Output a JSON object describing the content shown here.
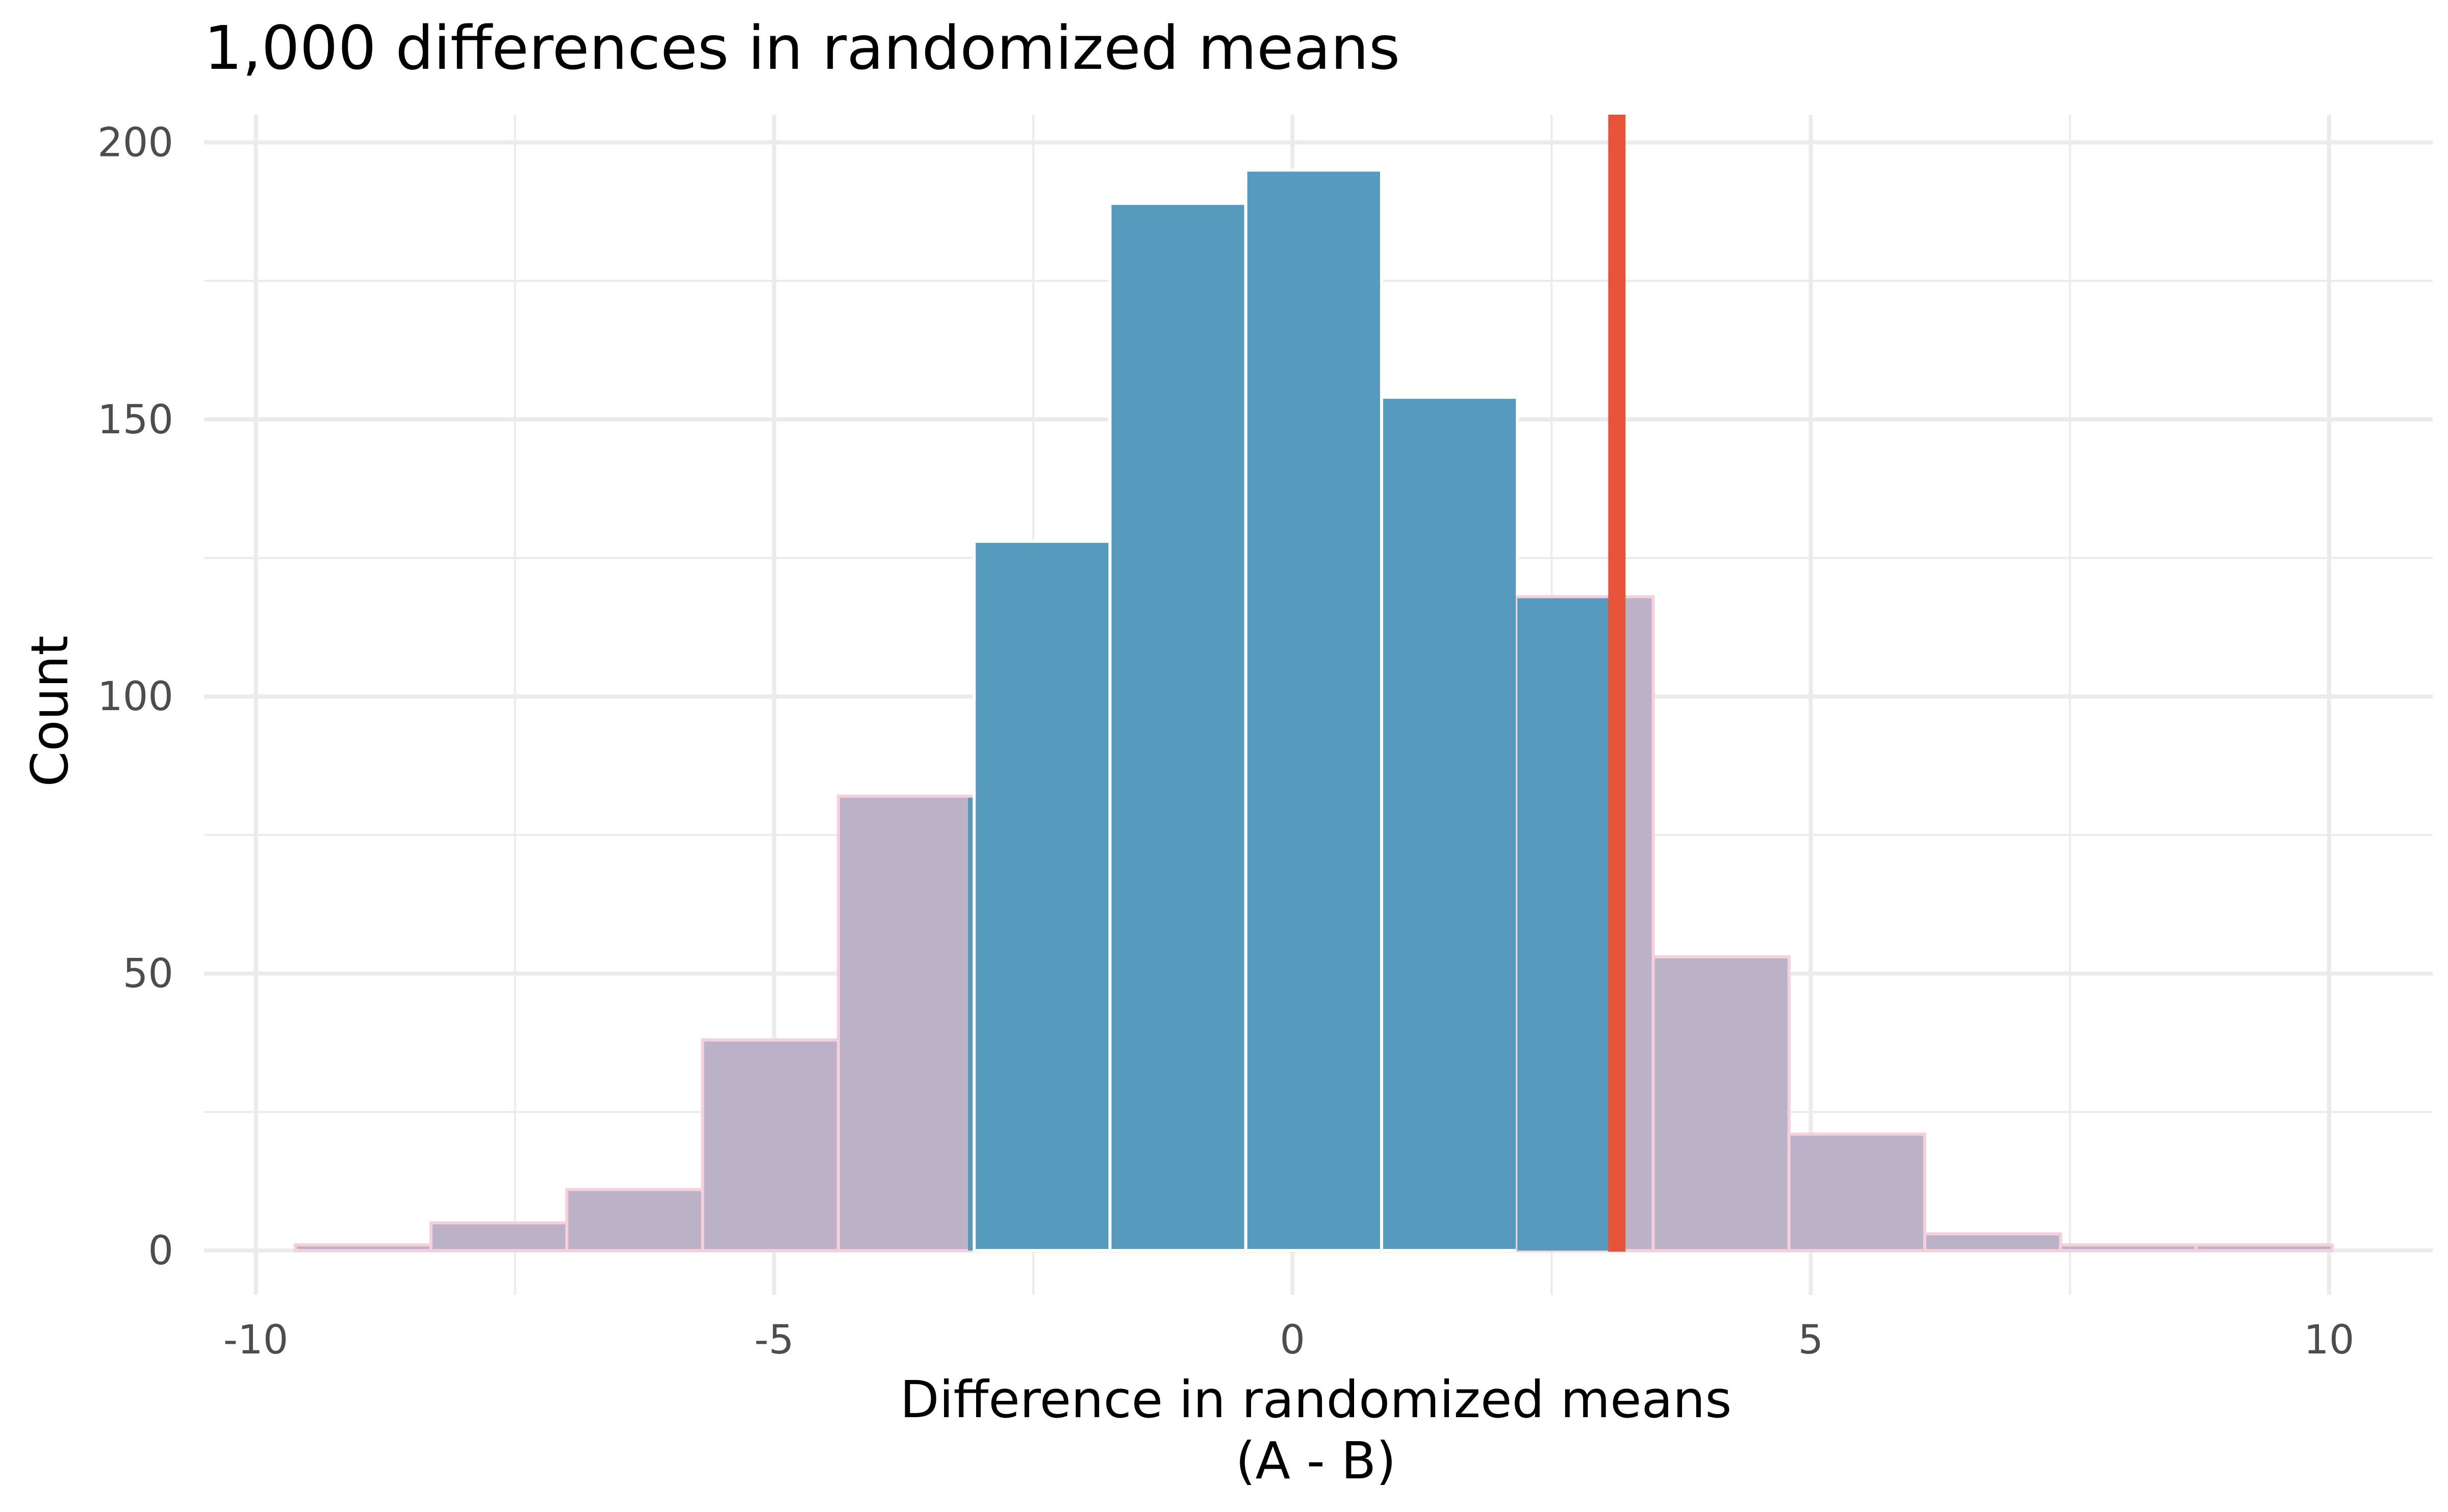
{
  "chart_data": {
    "type": "bar",
    "title": "1,000 differences in randomized means",
    "xlabel": "Difference in randomized means",
    "xlabel_line2": "(A - B)",
    "ylabel": "Count",
    "xlim": [
      -10.5,
      11
    ],
    "ylim": [
      -8,
      205
    ],
    "x_ticks": [
      -10,
      -5,
      0,
      5,
      10
    ],
    "x_tick_labels": [
      "-10",
      "-5",
      "0",
      "5",
      "10"
    ],
    "y_ticks": [
      0,
      50,
      100,
      150,
      200
    ],
    "y_tick_labels": [
      "0",
      "50",
      "100",
      "150",
      "200"
    ],
    "grid": true,
    "legend": "none",
    "bins": [
      {
        "x0": -9.62,
        "x1": -8.31,
        "count": 1
      },
      {
        "x0": -8.31,
        "x1": -7.0,
        "count": 5
      },
      {
        "x0": -7.0,
        "x1": -5.69,
        "count": 11
      },
      {
        "x0": -5.69,
        "x1": -4.38,
        "count": 38
      },
      {
        "x0": -4.38,
        "x1": -3.07,
        "count": 82
      },
      {
        "x0": -3.07,
        "x1": -1.76,
        "count": 128
      },
      {
        "x0": -1.76,
        "x1": -0.45,
        "count": 189
      },
      {
        "x0": -0.45,
        "x1": 0.86,
        "count": 195
      },
      {
        "x0": 0.86,
        "x1": 2.17,
        "count": 154
      },
      {
        "x0": 2.17,
        "x1": 3.48,
        "count": 118
      },
      {
        "x0": 3.48,
        "x1": 4.79,
        "count": 53
      },
      {
        "x0": 4.79,
        "x1": 6.1,
        "count": 21
      },
      {
        "x0": 6.1,
        "x1": 7.41,
        "count": 3
      },
      {
        "x0": 7.41,
        "x1": 8.72,
        "count": 1
      },
      {
        "x0": 8.72,
        "x1": 10.03,
        "count": 1
      }
    ],
    "shade_range": [
      -3.13,
      3.13
    ],
    "observed_difference": 3.13,
    "colors": {
      "inside": "#569bbd",
      "outside": "#bbb2c8",
      "outside_border": "#f5cfdc",
      "inside_border": "#ffffff",
      "observed_line": "#e8543a"
    }
  }
}
